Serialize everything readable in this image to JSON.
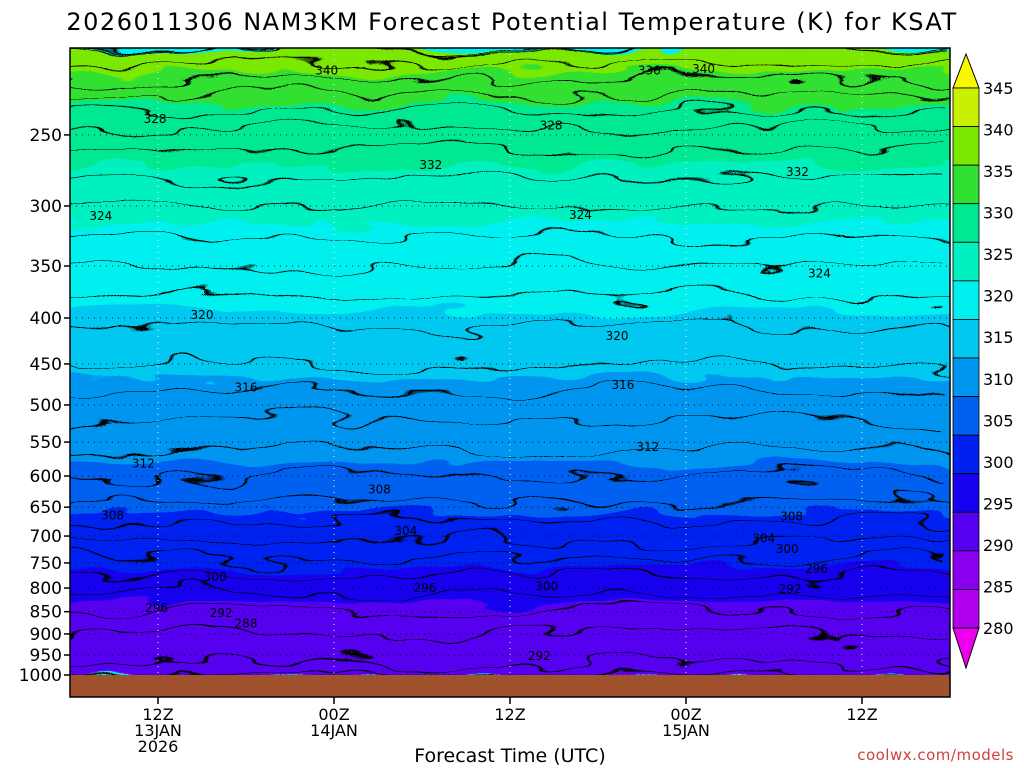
{
  "chart_data": {
    "type": "heatmap",
    "title": "2026011306 NAM3KM Forecast Potential Temperature (K) for KSAT",
    "xlabel": "Forecast Time (UTC)",
    "ylabel": "",
    "y_scale": "log",
    "y_inverted": true,
    "y_units": "hPa",
    "ylim": [
      1000,
      200
    ],
    "x_units": "hours from 2026-01-13 06Z",
    "xlim": [
      0,
      60
    ],
    "grid": true,
    "y_ticks": [
      250,
      300,
      350,
      400,
      450,
      500,
      550,
      600,
      650,
      700,
      750,
      800,
      850,
      900,
      950,
      1000
    ],
    "y_tick_labels": [
      "250",
      "300",
      "350",
      "400",
      "450",
      "500",
      "550",
      "600",
      "650",
      "700",
      "750",
      "800",
      "850",
      "900",
      "950",
      "1000"
    ],
    "x_ticks": [
      {
        "hour": 6,
        "lines": [
          "12Z",
          "13JAN",
          "2026"
        ]
      },
      {
        "hour": 18,
        "lines": [
          "00Z",
          "14JAN"
        ]
      },
      {
        "hour": 30,
        "lines": [
          "12Z"
        ]
      },
      {
        "hour": 42,
        "lines": [
          "00Z",
          "15JAN"
        ]
      },
      {
        "hour": 54,
        "lines": [
          "12Z"
        ]
      }
    ],
    "colorbar": {
      "ticks": [
        280,
        285,
        290,
        295,
        300,
        305,
        310,
        315,
        320,
        325,
        330,
        335,
        340,
        345
      ],
      "tick_labels": [
        "280",
        "285",
        "290",
        "295",
        "300",
        "305",
        "310",
        "315",
        "320",
        "325",
        "330",
        "335",
        "340",
        "345"
      ],
      "colors": [
        "#ee00ee",
        "#b000ee",
        "#8a00ee",
        "#5500ee",
        "#1600ee",
        "#0020f0",
        "#0060f0",
        "#0096f0",
        "#00c8f0",
        "#00f0f0",
        "#00f0c0",
        "#00e890",
        "#30e030",
        "#7ae800",
        "#c8f000",
        "#f8f800"
      ],
      "boundaries": [
        275,
        280,
        285,
        290,
        295,
        300,
        305,
        310,
        315,
        320,
        325,
        330,
        335,
        340,
        345,
        350
      ]
    },
    "profile_reference": {
      "pressure_hpa": [
        1000,
        950,
        900,
        850,
        800,
        750,
        700,
        650,
        600,
        550,
        500,
        450,
        400,
        350,
        300,
        250,
        200
      ],
      "theta_k": [
        289,
        290.5,
        292,
        294,
        296.5,
        299.5,
        302.5,
        305.5,
        308,
        310.5,
        313,
        316,
        318.5,
        322,
        326,
        331,
        342
      ]
    },
    "isentrope_labels": [
      {
        "text": "340",
        "hour": 17.5,
        "p": 212
      },
      {
        "text": "336",
        "hour": 39.5,
        "p": 212
      },
      {
        "text": "340",
        "hour": 43.2,
        "p": 211
      },
      {
        "text": "328",
        "hour": 5.8,
        "p": 240
      },
      {
        "text": "328",
        "hour": 32.8,
        "p": 244
      },
      {
        "text": "332",
        "hour": 24.6,
        "p": 270
      },
      {
        "text": "332",
        "hour": 49.6,
        "p": 275
      },
      {
        "text": "324",
        "hour": 2.1,
        "p": 308
      },
      {
        "text": "324",
        "hour": 34.8,
        "p": 307
      },
      {
        "text": "324",
        "hour": 51.1,
        "p": 357
      },
      {
        "text": "320",
        "hour": 9.0,
        "p": 397
      },
      {
        "text": "320",
        "hour": 37.3,
        "p": 419
      },
      {
        "text": "316",
        "hour": 12.0,
        "p": 478
      },
      {
        "text": "316",
        "hour": 37.7,
        "p": 475
      },
      {
        "text": "312",
        "hour": 5.0,
        "p": 581
      },
      {
        "text": "312",
        "hour": 39.4,
        "p": 557
      },
      {
        "text": "308",
        "hour": 2.9,
        "p": 664
      },
      {
        "text": "308",
        "hour": 21.1,
        "p": 621
      },
      {
        "text": "308",
        "hour": 49.2,
        "p": 666
      },
      {
        "text": "304",
        "hour": 22.9,
        "p": 691
      },
      {
        "text": "304",
        "hour": 47.3,
        "p": 704
      },
      {
        "text": "300",
        "hour": 9.9,
        "p": 778
      },
      {
        "text": "300",
        "hour": 32.5,
        "p": 797
      },
      {
        "text": "300",
        "hour": 48.9,
        "p": 724
      },
      {
        "text": "296",
        "hour": 5.9,
        "p": 842
      },
      {
        "text": "296",
        "hour": 24.2,
        "p": 800
      },
      {
        "text": "296",
        "hour": 50.9,
        "p": 762
      },
      {
        "text": "292",
        "hour": 10.3,
        "p": 853
      },
      {
        "text": "292",
        "hour": 32.0,
        "p": 952
      },
      {
        "text": "292",
        "hour": 49.1,
        "p": 802
      },
      {
        "text": "288",
        "hour": 12.0,
        "p": 876
      }
    ],
    "credit": "coolwx.com/models"
  }
}
